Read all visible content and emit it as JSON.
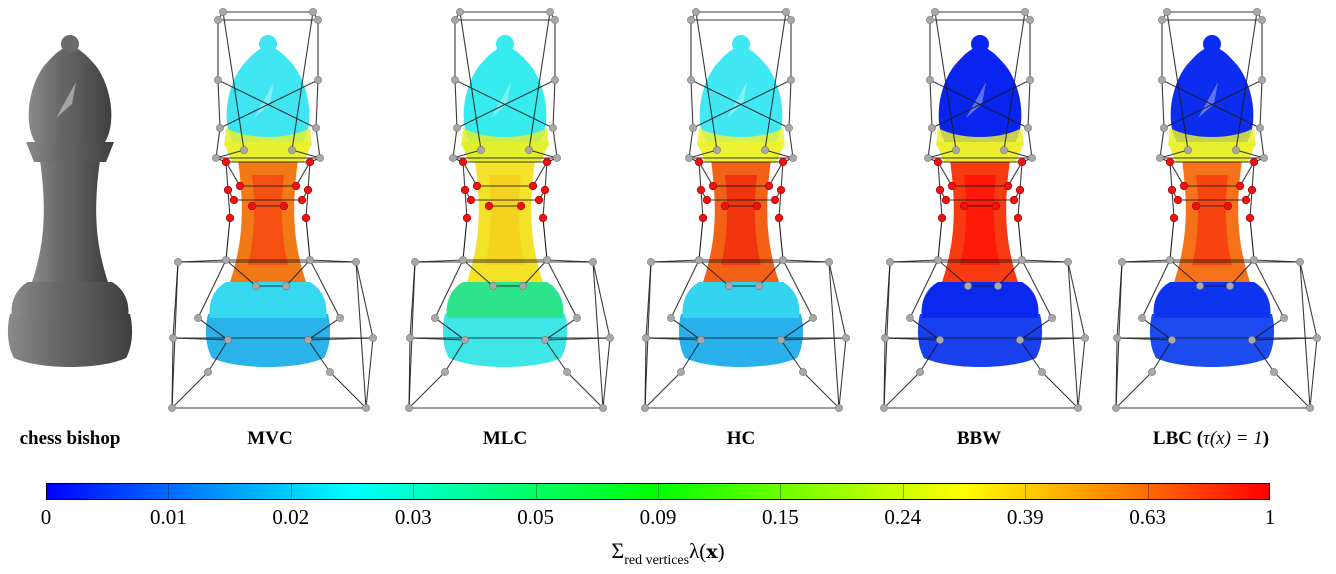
{
  "panels": [
    {
      "label": "chess bishop",
      "type": "model"
    },
    {
      "label": "MVC",
      "type": "weights",
      "colors": {
        "top": "#3fe6f2",
        "collar": "#e8f030",
        "neck": "#f27a16",
        "neck_mid": "#f54a12",
        "base": "#35d8ee",
        "rim": "#2ab3ea"
      }
    },
    {
      "label": "MLC",
      "type": "weights",
      "colors": {
        "top": "#36ecee",
        "collar": "#e2ef2c",
        "neck": "#f4e12a",
        "neck_mid": "#f3d21e",
        "base": "#2de48c",
        "rim": "#3ee6e8"
      }
    },
    {
      "label": "HC",
      "type": "weights",
      "colors": {
        "top": "#40e8f4",
        "collar": "#edf232",
        "neck": "#f36116",
        "neck_mid": "#f0300c",
        "base": "#34d3ef",
        "rim": "#28b0ec"
      }
    },
    {
      "label": "BBW",
      "type": "weights",
      "colors": {
        "top": "#0a24f0",
        "collar": "#ebef30",
        "neck": "#f73a10",
        "neck_mid": "#ff1608",
        "base": "#0a28ee",
        "rim": "#1840ef"
      }
    },
    {
      "label_prefix": "LBC (",
      "label_math": "τ(x) = 1",
      "label_suffix": ")",
      "type": "weights",
      "colors": {
        "top": "#0c2cf0",
        "collar": "#e8f02f",
        "neck": "#f5721a",
        "neck_mid": "#f8400f",
        "base": "#0e34ef",
        "rim": "#1c4cf0"
      }
    }
  ],
  "colorbar": {
    "ticks": [
      "0",
      "0.01",
      "0.02",
      "0.03",
      "0.05",
      "0.09",
      "0.15",
      "0.24",
      "0.39",
      "0.63",
      "1"
    ],
    "label_main": "Σ",
    "label_sub": "red vertices",
    "label_fn": "λ(",
    "label_arg": "x",
    "label_close": ")",
    "colors": [
      "#0000ff",
      "#00ffff",
      "#00ff00",
      "#ffff00",
      "#ff0000"
    ]
  },
  "cage_colors": {
    "wire": "#1a1a1a",
    "vertex": "#a8a8a8",
    "red_vertex": "#ee1111",
    "model": "#616161"
  }
}
